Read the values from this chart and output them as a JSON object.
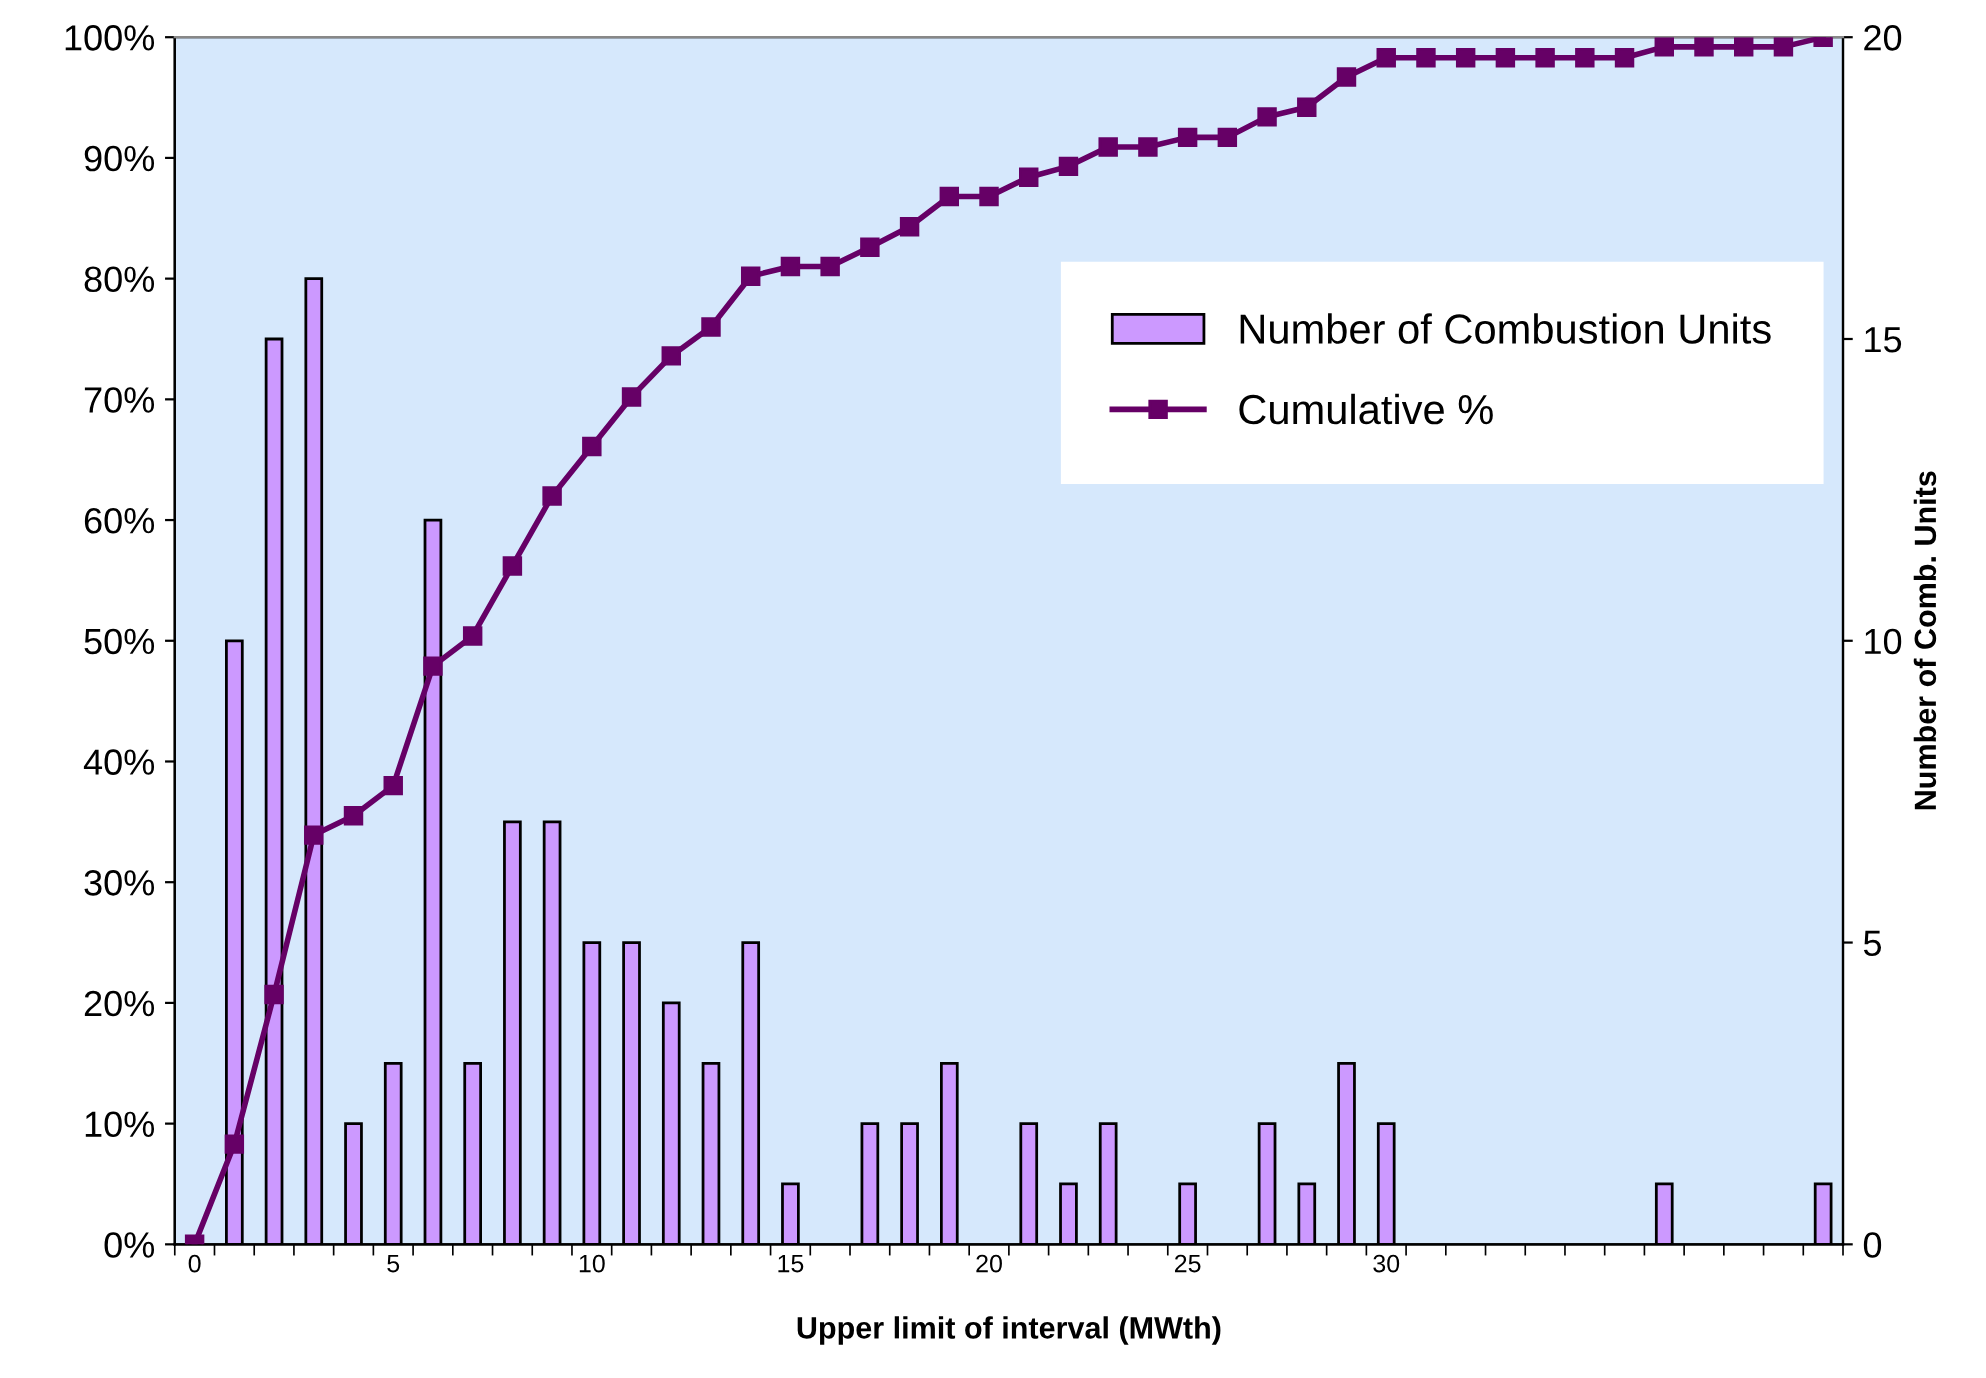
{
  "chart_data": {
    "type": "bar",
    "xlabel": "Upper limit of interval (MWth)",
    "y2label": "Number of Comb. Units",
    "categories": [
      "0",
      null,
      null,
      null,
      null,
      "5",
      null,
      null,
      null,
      null,
      "10",
      null,
      null,
      null,
      null,
      "15",
      null,
      null,
      null,
      null,
      "20",
      null,
      null,
      null,
      null,
      "25",
      null,
      null,
      null,
      null,
      "30",
      null,
      null,
      null,
      null,
      null,
      null,
      null,
      null,
      null,
      null,
      null
    ],
    "series": [
      {
        "name": "Number of Combustion Units",
        "axis": "y2",
        "color": "#cc99ff",
        "values": [
          0,
          10,
          15,
          16,
          2,
          3,
          12,
          3,
          7,
          7,
          5,
          5,
          4,
          3,
          5,
          1,
          0,
          2,
          2,
          3,
          0,
          2,
          1,
          2,
          0,
          1,
          0,
          2,
          1,
          3,
          2,
          0,
          0,
          0,
          0,
          0,
          0,
          1,
          0,
          0,
          0,
          1
        ]
      },
      {
        "name": "Cumulative %",
        "type": "line",
        "axis": "y",
        "color": "#660066",
        "marker": "square",
        "line_style": "solid",
        "values": [
          0,
          8.3,
          20.7,
          33.9,
          35.5,
          38.0,
          47.9,
          50.4,
          56.2,
          62.0,
          66.1,
          70.2,
          73.6,
          76.0,
          80.2,
          81.0,
          81.0,
          82.6,
          84.3,
          86.8,
          86.8,
          88.4,
          89.3,
          90.9,
          90.9,
          91.7,
          91.7,
          93.4,
          94.2,
          96.7,
          98.3,
          98.3,
          98.3,
          98.3,
          98.3,
          98.3,
          98.3,
          99.2,
          99.2,
          99.2,
          99.2,
          100
        ]
      }
    ],
    "ylim": [
      0,
      100
    ],
    "yticks": [
      {
        "value": 0,
        "label": "0%"
      },
      {
        "value": 10,
        "label": "10%"
      },
      {
        "value": 20,
        "label": "20%"
      },
      {
        "value": 30,
        "label": "30%"
      },
      {
        "value": 40,
        "label": "40%"
      },
      {
        "value": 50,
        "label": "50%"
      },
      {
        "value": 60,
        "label": "60%"
      },
      {
        "value": 70,
        "label": "70%"
      },
      {
        "value": 80,
        "label": "80%"
      },
      {
        "value": 90,
        "label": "90%"
      },
      {
        "value": 100,
        "label": "100%"
      }
    ],
    "y2lim": [
      0,
      20
    ],
    "y2ticks": [
      0,
      5,
      10,
      15,
      20
    ],
    "grid": false,
    "legend": "top right"
  }
}
